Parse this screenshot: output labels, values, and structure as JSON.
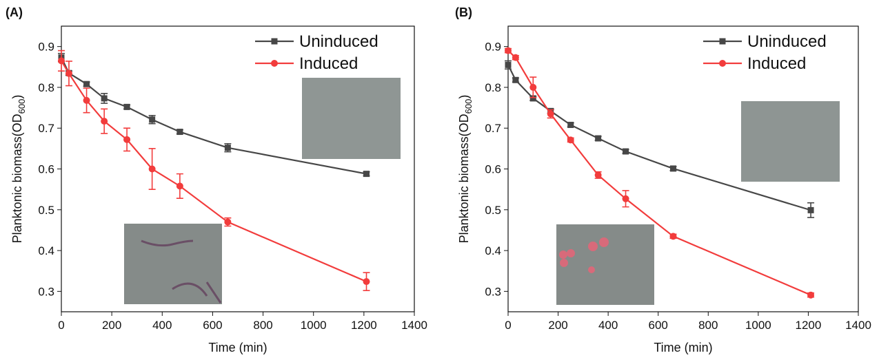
{
  "chart_data": [
    {
      "type": "line",
      "panel_label": "(A)",
      "x_label": "Time (min)",
      "y_label": "Planktonic biomass(OD",
      "y_label_sub": "600",
      "y_label_end": ")",
      "xlim": [
        0,
        1400
      ],
      "xticks": [
        0,
        200,
        400,
        600,
        800,
        1000,
        1200,
        1400
      ],
      "ylim": [
        0.25,
        0.95
      ],
      "yticks": [
        0.3,
        0.4,
        0.5,
        0.6,
        0.7,
        0.8,
        0.9
      ],
      "series": [
        {
          "name": "Uninduced",
          "color": "#474747",
          "marker": "square",
          "x": [
            0,
            30,
            100,
            170,
            260,
            360,
            470,
            660,
            1210
          ],
          "values": [
            0.873,
            0.835,
            0.808,
            0.773,
            0.752,
            0.721,
            0.691,
            0.652,
            0.588
          ],
          "errors": [
            0.01,
            0.005,
            0.005,
            0.012,
            0.005,
            0.01,
            0.005,
            0.01,
            0.005
          ]
        },
        {
          "name": "Induced",
          "color": "#f23c3c",
          "marker": "circle",
          "x": [
            0,
            30,
            100,
            170,
            260,
            360,
            470,
            660,
            1210
          ],
          "values": [
            0.865,
            0.834,
            0.768,
            0.717,
            0.672,
            0.6,
            0.558,
            0.47,
            0.324
          ],
          "errors": [
            0.025,
            0.03,
            0.03,
            0.03,
            0.028,
            0.05,
            0.03,
            0.01,
            0.022
          ]
        }
      ]
    },
    {
      "type": "line",
      "panel_label": "(B)",
      "x_label": "Time (min)",
      "y_label": "Planktonic biomass(OD",
      "y_label_sub": "600",
      "y_label_end": ")",
      "xlim": [
        0,
        1400
      ],
      "xticks": [
        0,
        200,
        400,
        600,
        800,
        1000,
        1200,
        1400
      ],
      "ylim": [
        0.25,
        0.95
      ],
      "yticks": [
        0.3,
        0.4,
        0.5,
        0.6,
        0.7,
        0.8,
        0.9
      ],
      "series": [
        {
          "name": "Uninduced",
          "color": "#474747",
          "marker": "square",
          "x": [
            0,
            30,
            100,
            170,
            250,
            360,
            470,
            660,
            1210
          ],
          "values": [
            0.855,
            0.818,
            0.773,
            0.742,
            0.708,
            0.675,
            0.643,
            0.601,
            0.499
          ],
          "errors": [
            0.01,
            0.005,
            0.005,
            0.005,
            0.005,
            0.005,
            0.005,
            0.005,
            0.018
          ]
        },
        {
          "name": "Induced",
          "color": "#f23c3c",
          "marker": "circle",
          "x": [
            0,
            30,
            100,
            170,
            250,
            360,
            470,
            660,
            1210
          ],
          "values": [
            0.89,
            0.873,
            0.8,
            0.735,
            0.671,
            0.585,
            0.527,
            0.435,
            0.291
          ],
          "errors": [
            0.005,
            0.005,
            0.025,
            0.01,
            0.005,
            0.008,
            0.02,
            0.005,
            0.005
          ]
        }
      ]
    }
  ]
}
